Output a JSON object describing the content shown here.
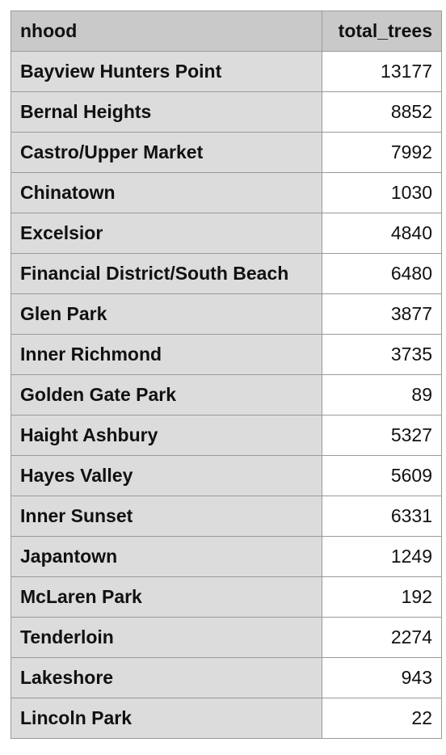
{
  "table": {
    "columns": [
      "nhood",
      "total_trees"
    ],
    "rows": [
      {
        "nhood": "Bayview Hunters Point",
        "total_trees": "13177"
      },
      {
        "nhood": "Bernal Heights",
        "total_trees": "8852"
      },
      {
        "nhood": "Castro/Upper Market",
        "total_trees": "7992"
      },
      {
        "nhood": "Chinatown",
        "total_trees": "1030"
      },
      {
        "nhood": "Excelsior",
        "total_trees": "4840"
      },
      {
        "nhood": "Financial District/South Beach",
        "total_trees": "6480"
      },
      {
        "nhood": "Glen Park",
        "total_trees": "3877"
      },
      {
        "nhood": "Inner Richmond",
        "total_trees": "3735"
      },
      {
        "nhood": "Golden Gate Park",
        "total_trees": "89"
      },
      {
        "nhood": "Haight Ashbury",
        "total_trees": "5327"
      },
      {
        "nhood": "Hayes Valley",
        "total_trees": "5609"
      },
      {
        "nhood": "Inner Sunset",
        "total_trees": "6331"
      },
      {
        "nhood": "Japantown",
        "total_trees": "1249"
      },
      {
        "nhood": "McLaren Park",
        "total_trees": "192"
      },
      {
        "nhood": "Tenderloin",
        "total_trees": "2274"
      },
      {
        "nhood": "Lakeshore",
        "total_trees": "943"
      },
      {
        "nhood": "Lincoln Park",
        "total_trees": "22"
      }
    ]
  }
}
